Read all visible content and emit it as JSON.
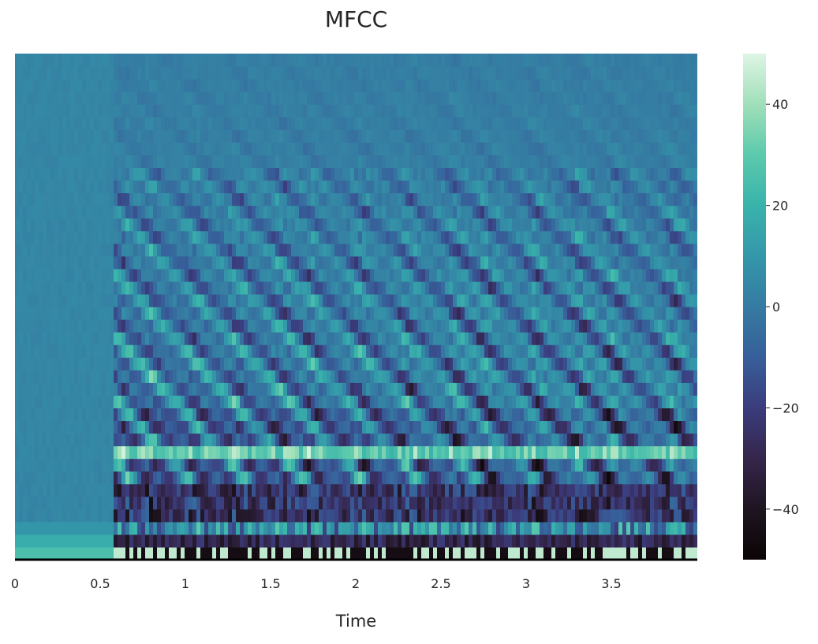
{
  "chart_data": {
    "type": "heatmap",
    "title": "MFCC",
    "xlabel": "Time",
    "ylabel": "",
    "x_unit": "seconds",
    "xlim": [
      0,
      4.0
    ],
    "x_ticks": [
      0,
      0.5,
      1,
      1.5,
      2,
      2.5,
      3,
      3.5
    ],
    "x_tick_labels": [
      "0",
      "0.5",
      "1",
      "1.5",
      "2",
      "2.5",
      "3",
      "3.5"
    ],
    "y_ticks_visible": false,
    "n_coefficients": 40,
    "colormap": "mako",
    "colorbar": {
      "vmin": -50,
      "vmax": 50,
      "ticks": [
        40,
        20,
        0,
        -20,
        -40
      ],
      "tick_labels": [
        "40",
        "20",
        "0",
        "−20",
        "−40"
      ],
      "color_stops": [
        {
          "value": -50,
          "color": "#0b0405"
        },
        {
          "value": -40,
          "color": "#1e1521"
        },
        {
          "value": -30,
          "color": "#35264c"
        },
        {
          "value": -20,
          "color": "#3b3c7d"
        },
        {
          "value": -10,
          "color": "#375f9a"
        },
        {
          "value": 0,
          "color": "#357ba2"
        },
        {
          "value": 10,
          "color": "#3497a9"
        },
        {
          "value": 20,
          "color": "#39b3ab"
        },
        {
          "value": 30,
          "color": "#5ccaad"
        },
        {
          "value": 40,
          "color": "#a0dfb9"
        },
        {
          "value": 50,
          "color": "#def5e5"
        }
      ]
    },
    "grid": false,
    "legend": "none"
  }
}
